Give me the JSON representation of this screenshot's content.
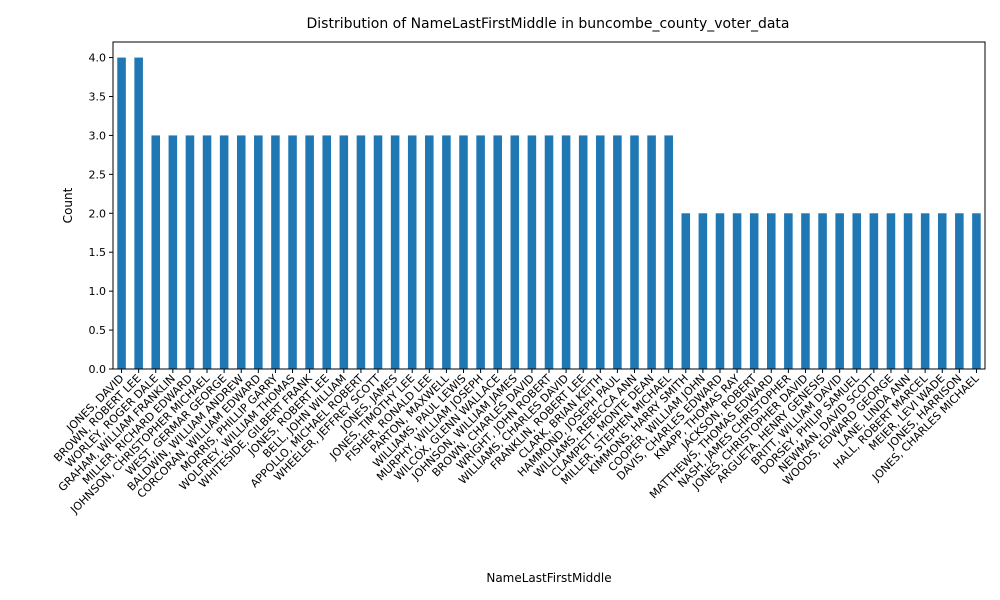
{
  "chart_data": {
    "type": "bar",
    "title": "Distribution of NameLastFirstMiddle in buncombe_county_voter_data",
    "xlabel": "NameLastFirstMiddle",
    "ylabel": "Count",
    "ylim": [
      0,
      4.2
    ],
    "yticks": [
      "0.0",
      "0.5",
      "1.0",
      "1.5",
      "2.0",
      "2.5",
      "3.0",
      "3.5",
      "4.0"
    ],
    "grid": false,
    "bar_color": "#1f77b4",
    "categories": [
      "JONES, DAVID",
      "BROWN, ROBERT LEE",
      "WORLEY, ROGER DALE",
      "GRAHAM, WILLIAM FRANKLIN",
      "MILLER, RICHARD EDWARD",
      "JOHNSON, CHRISTOPHER MICHAEL",
      "WEST, GERMAR GEORGE",
      "BALDWIN, WILLIAM ANDREW",
      "CORCORAN, WILLIAM EDWARD",
      "MORRIS, PHILLIP GARRY",
      "WOLFREY, WILLIAM THOMAS",
      "WHITESIDE, GILBERT FRANK",
      "JONES, ROBERT LEE",
      "BELL, JOHN WILLIAM",
      "APPOLLO, MICHAEL ROBERT",
      "WHEELER, JEFFREY SCOTT",
      "JONES, JAMES",
      "JONES, TIMOTHY LEE",
      "FISHER, RONALD LEE",
      "PARTON, MAXWELL",
      "WILLIAMS, PAUL LEWIS",
      "MURPHY, WILLIAM JOSEPH",
      "WILCOX, GLENN WALLACE",
      "JOHNSON, WILLIAM JAMES",
      "BROWN, CHARLES DAVID",
      "WRIGHT, JOHN ROBERT",
      "WILLIAMS, CHARLES DAVID",
      "FRANKLIN, ROBERT LEE",
      "CLARK, BRIAN KEITH",
      "HAMMOND, JOSEPH PAUL",
      "WILLIAMS, REBECCA ANN",
      "CLAMPETT, MONTE DEAN",
      "MILLER, STEPHEN MICHAEL",
      "KIMMONS, HARRY SMITH",
      "COOPER, WILLIAM JOHN",
      "DAVIS, CHARLES EDWARD",
      "KNAPP, THOMAS RAY",
      "JACKSON, ROBERT",
      "MATTHEWS, THOMAS EDWARD",
      "NASH, JAMES CHRISTOPHER",
      "JONES, CHRISTOPHER DAVID",
      "ARGUETA, HENRY GENESIS",
      "BRITT, WILLIAM DAVID",
      "DORSEY, PHILIP SAMUEL",
      "NEWMAN, DAVID SCOTT",
      "WOODS, EDWARD GEORGE",
      "LANE, LINDA ANN",
      "HALL, ROBERT MARCEL",
      "MEIER, LEVI WADE",
      "JONES, HARRISON",
      "JONES, CHARLES MICHAEL"
    ],
    "values": [
      4,
      4,
      3,
      3,
      3,
      3,
      3,
      3,
      3,
      3,
      3,
      3,
      3,
      3,
      3,
      3,
      3,
      3,
      3,
      3,
      3,
      3,
      3,
      3,
      3,
      3,
      3,
      3,
      3,
      3,
      3,
      3,
      3,
      2,
      2,
      2,
      2,
      2,
      2,
      2,
      2,
      2,
      2,
      2,
      2,
      2,
      2,
      2,
      2,
      2,
      2
    ]
  }
}
